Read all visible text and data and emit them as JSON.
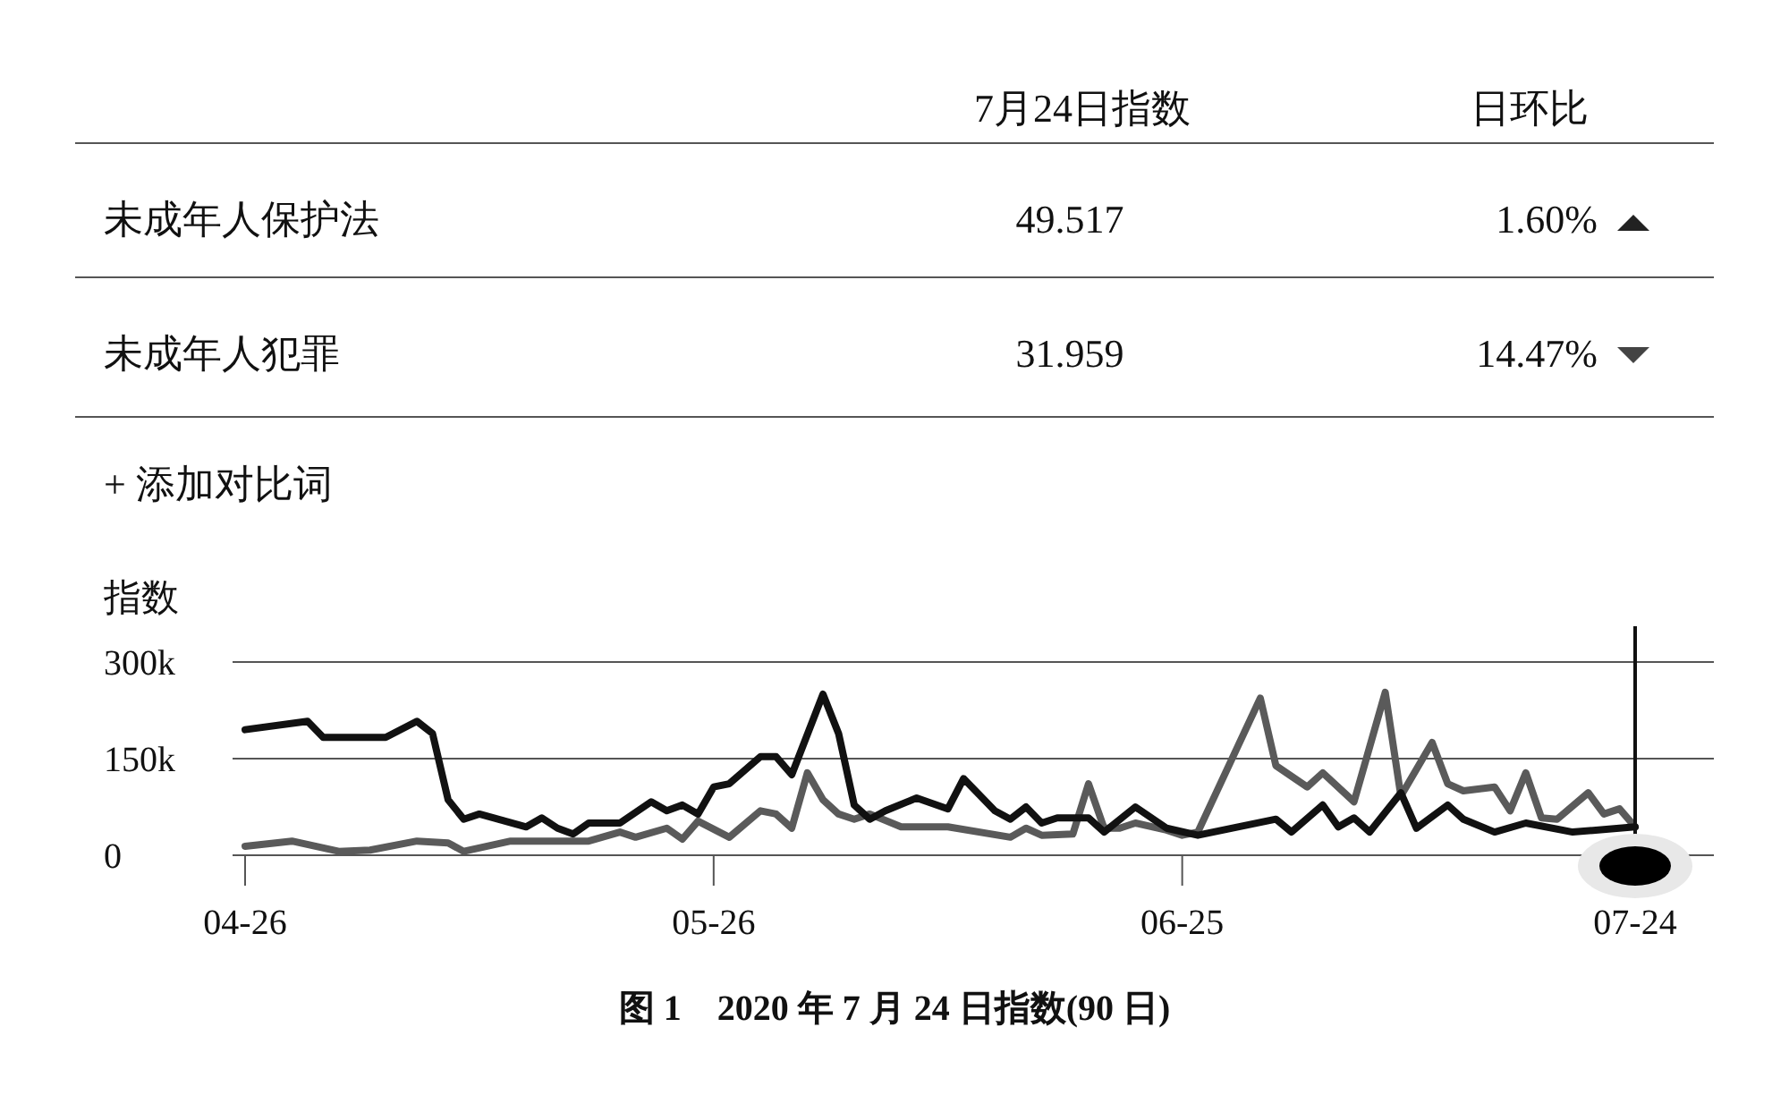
{
  "chart_data": [
    {
      "type": "other",
      "annotations": [
        "7月24日指数",
        "日环比",
        "未成年人保护法",
        "49.517",
        "1.60%",
        "未成年人犯罪",
        "31.959",
        "14.47%",
        "+ 添加对比词"
      ]
    },
    {
      "type": "line",
      "ylabel": "指数",
      "annotations": [
        "图 1　2020 年 7 月 24 日指数(90 日)"
      ],
      "xlim": [
        "2020-04-26",
        "2020-07-24"
      ],
      "xticks": [
        {
          "value": "2020-04-26",
          "label": "04-26"
        },
        {
          "value": "2020-05-26",
          "label": "05-26"
        },
        {
          "value": "2020-06-25",
          "label": "06-25"
        },
        {
          "value": "2020-07-24",
          "label": "07-24"
        }
      ],
      "ylim": [
        0,
        300000
      ],
      "yticks": [
        0,
        {
          "value": 150000,
          "label": "150k"
        },
        {
          "value": 300000,
          "label": "300k"
        }
      ],
      "grid": "y",
      "line_style": "solid",
      "marker": "none",
      "ref_lines": [
        {
          "axis": "x",
          "value": "2020-07-24",
          "color": "#111111"
        }
      ],
      "series": [
        {
          "color": "#5a5a5a",
          "x": [
            "2020-04-26",
            "2020-04-29",
            "2020-05-02",
            "2020-05-04",
            "2020-05-07",
            "2020-05-09",
            "2020-05-10",
            "2020-05-13",
            "2020-05-18",
            "2020-05-20",
            "2020-05-21",
            "2020-05-23",
            "2020-05-24",
            "2020-05-25",
            "2020-05-27",
            "2020-05-29",
            "2020-05-30",
            "2020-05-31",
            "2020-06-01",
            "2020-06-02",
            "2020-06-03",
            "2020-06-04",
            "2020-06-05",
            "2020-06-07",
            "2020-06-10",
            "2020-06-14",
            "2020-06-15",
            "2020-06-16",
            "2020-06-18",
            "2020-06-19",
            "2020-06-20",
            "2020-06-21",
            "2020-06-22",
            "2020-06-24",
            "2020-06-25",
            "2020-06-26",
            "2020-06-30",
            "2020-07-01",
            "2020-07-03",
            "2020-07-04",
            "2020-07-06",
            "2020-07-08",
            "2020-07-09",
            "2020-07-11",
            "2020-07-12",
            "2020-07-13",
            "2020-07-15",
            "2020-07-16",
            "2020-07-17",
            "2020-07-18",
            "2020-07-19",
            "2020-07-21",
            "2020-07-22",
            "2020-07-23",
            "2020-07-24"
          ],
          "values": [
            14000,
            22000,
            6000,
            8000,
            22000,
            19000,
            6000,
            22000,
            22000,
            36000,
            28000,
            42000,
            25000,
            53000,
            28000,
            69000,
            64000,
            42000,
            128000,
            86000,
            64000,
            56000,
            64000,
            44000,
            44000,
            28000,
            42000,
            31000,
            33000,
            111000,
            42000,
            42000,
            50000,
            39000,
            31000,
            36000,
            244000,
            139000,
            106000,
            128000,
            83000,
            253000,
            92000,
            175000,
            111000,
            100000,
            106000,
            69000,
            128000,
            58000,
            56000,
            97000,
            64000,
            72000,
            44000
          ]
        },
        {
          "color": "#111111",
          "x": [
            "2020-04-26",
            "2020-04-30",
            "2020-05-01",
            "2020-05-05",
            "2020-05-07",
            "2020-05-08",
            "2020-05-09",
            "2020-05-10",
            "2020-05-11",
            "2020-05-14",
            "2020-05-15",
            "2020-05-16",
            "2020-05-17",
            "2020-05-18",
            "2020-05-20",
            "2020-05-22",
            "2020-05-23",
            "2020-05-24",
            "2020-05-25",
            "2020-05-26",
            "2020-05-27",
            "2020-05-29",
            "2020-05-30",
            "2020-05-31",
            "2020-06-02",
            "2020-06-03",
            "2020-06-04",
            "2020-06-05",
            "2020-06-06",
            "2020-06-08",
            "2020-06-10",
            "2020-06-11",
            "2020-06-13",
            "2020-06-14",
            "2020-06-15",
            "2020-06-16",
            "2020-06-17",
            "2020-06-18",
            "2020-06-19",
            "2020-06-20",
            "2020-06-22",
            "2020-06-24",
            "2020-06-26",
            "2020-07-01",
            "2020-07-02",
            "2020-07-04",
            "2020-07-05",
            "2020-07-06",
            "2020-07-07",
            "2020-07-09",
            "2020-07-10",
            "2020-07-12",
            "2020-07-13",
            "2020-07-15",
            "2020-07-17",
            "2020-07-20",
            "2020-07-24"
          ],
          "values": [
            195000,
            208000,
            183000,
            183000,
            208000,
            189000,
            86000,
            56000,
            64000,
            44000,
            58000,
            42000,
            33000,
            50000,
            50000,
            83000,
            69000,
            78000,
            64000,
            106000,
            111000,
            153000,
            153000,
            125000,
            250000,
            189000,
            78000,
            56000,
            69000,
            89000,
            72000,
            119000,
            69000,
            56000,
            75000,
            50000,
            58000,
            58000,
            58000,
            36000,
            75000,
            42000,
            31000,
            56000,
            36000,
            78000,
            44000,
            58000,
            36000,
            97000,
            42000,
            78000,
            56000,
            36000,
            50000,
            36000,
            44000
          ]
        }
      ]
    }
  ]
}
